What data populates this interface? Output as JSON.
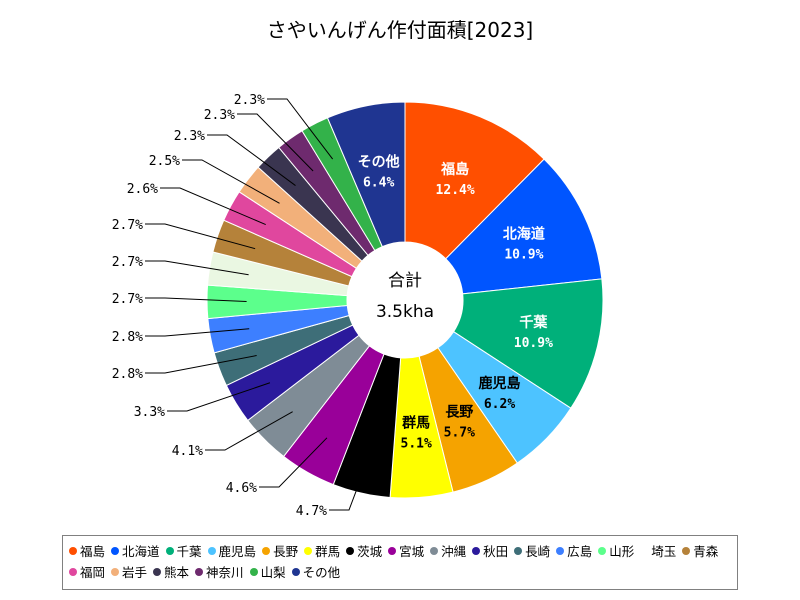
{
  "chart_data": {
    "type": "pie",
    "title": "さやいんげん作付面積[2023]",
    "center_label": {
      "line1": "合計",
      "line2": "3.5kha"
    },
    "slices": [
      {
        "name": "福島",
        "value": 12.4,
        "label": "12.4%",
        "color": "#ff4f00"
      },
      {
        "name": "北海道",
        "value": 10.9,
        "label": "10.9%",
        "color": "#0055ff"
      },
      {
        "name": "千葉",
        "value": 10.9,
        "label": "10.9%",
        "color": "#00b07a"
      },
      {
        "name": "鹿児島",
        "value": 6.2,
        "label": "6.2%",
        "color": "#4dc3ff"
      },
      {
        "name": "長野",
        "value": 5.7,
        "label": "5.7%",
        "color": "#f5a300"
      },
      {
        "name": "群馬",
        "value": 5.1,
        "label": "5.1%",
        "color": "#ffff00"
      },
      {
        "name": "茨城",
        "value": 4.7,
        "label": "4.7%",
        "color": "#000000"
      },
      {
        "name": "宮城",
        "value": 4.6,
        "label": "4.6%",
        "color": "#990099"
      },
      {
        "name": "沖縄",
        "value": 4.1,
        "label": "4.1%",
        "color": "#7f8c96"
      },
      {
        "name": "秋田",
        "value": 3.3,
        "label": "3.3%",
        "color": "#2b1a9c"
      },
      {
        "name": "長崎",
        "value": 2.8,
        "label": "2.8%",
        "color": "#3e6e78"
      },
      {
        "name": "広島",
        "value": 2.8,
        "label": "2.8%",
        "color": "#3d7fff"
      },
      {
        "name": "山形",
        "value": 2.7,
        "label": "2.7%",
        "color": "#5cff8c"
      },
      {
        "name": "埼玉",
        "value": 2.7,
        "label": "2.7%",
        "color": "#eaf7e2"
      },
      {
        "name": "青森",
        "value": 2.7,
        "label": "2.7%",
        "color": "#b5823a"
      },
      {
        "name": "福岡",
        "value": 2.6,
        "label": "2.6%",
        "color": "#e0479e"
      },
      {
        "name": "岩手",
        "value": 2.5,
        "label": "2.5%",
        "color": "#f2b07a"
      },
      {
        "name": "熊本",
        "value": 2.3,
        "label": "2.3%",
        "color": "#3a3550"
      },
      {
        "name": "神奈川",
        "value": 2.3,
        "label": "2.3%",
        "color": "#6e2a6e"
      },
      {
        "name": "山梨",
        "value": 2.3,
        "label": "2.3%",
        "color": "#33b24a"
      },
      {
        "name": "その他",
        "value": 6.4,
        "label": "6.4%",
        "color": "#1f3591"
      }
    ],
    "legend_placement": "bottom"
  }
}
